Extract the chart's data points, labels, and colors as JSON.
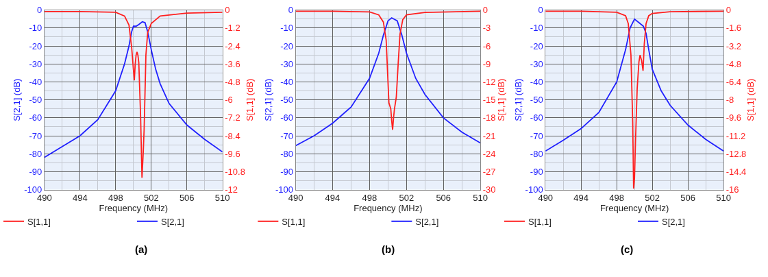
{
  "chart_data": [
    {
      "type": "line",
      "xlabel": "Frequency (MHz)",
      "ylabel": "S[2,1] (dB)",
      "y2label": "S[1,1] (dB)",
      "xlim": [
        490,
        510
      ],
      "xticks": [
        490,
        494,
        498,
        502,
        506,
        510
      ],
      "ylim": [
        -100,
        0
      ],
      "yticks": [
        0,
        -10,
        -20,
        -30,
        -40,
        -50,
        -60,
        -70,
        -80,
        -90,
        -100
      ],
      "y2lim": [
        -12,
        0
      ],
      "y2ticks": [
        0,
        -1.2,
        -2.4,
        -3.6,
        -4.8,
        -6,
        -7.2,
        -8.4,
        -9.6,
        -10.8,
        -12
      ],
      "grid": true,
      "legend": "bottom",
      "annotations": [
        "(a)"
      ],
      "series": [
        {
          "name": "S[1,1]",
          "color": "#ff2020",
          "axis": "y2",
          "x": [
            490,
            494,
            498,
            499,
            499.5,
            499.8,
            500,
            500.1,
            500.2,
            500.3,
            500.4,
            500.5,
            500.6,
            500.8,
            500.96,
            501.1,
            501.2,
            501.4,
            501.6,
            502,
            503,
            506,
            510
          ],
          "values": [
            -0.1,
            -0.1,
            -0.15,
            -0.4,
            -1.0,
            -2.5,
            -4.0,
            -4.7,
            -3.6,
            -3.0,
            -2.8,
            -3.0,
            -3.5,
            -7.0,
            -11.2,
            -9.5,
            -8.0,
            -3.0,
            -1.5,
            -0.9,
            -0.4,
            -0.2,
            -0.15
          ]
        },
        {
          "name": "S[2,1]",
          "color": "#2020ff",
          "x": [
            490,
            492,
            494,
            496,
            498,
            499,
            499.5,
            499.8,
            500,
            500.3,
            500.6,
            501,
            501.3,
            501.6,
            502,
            502.5,
            503,
            504,
            506,
            508,
            510
          ],
          "values": [
            -82,
            -76,
            -70,
            -61,
            -45,
            -30,
            -20,
            -12,
            -9,
            -9,
            -8,
            -6.5,
            -7,
            -12,
            -22,
            -33,
            -41,
            -52,
            -64,
            -72,
            -79
          ]
        }
      ]
    },
    {
      "type": "line",
      "xlabel": "Frequency (MHz)",
      "ylabel": "S[2,1] (dB)",
      "y2label": "S[1,1] (dB)",
      "xlim": [
        490,
        510
      ],
      "xticks": [
        490,
        494,
        498,
        502,
        506,
        510
      ],
      "ylim": [
        -100,
        0
      ],
      "yticks": [
        0,
        -10,
        -20,
        -30,
        -40,
        -50,
        -60,
        -70,
        -80,
        -90,
        -100
      ],
      "y2lim": [
        -30,
        0
      ],
      "y2ticks": [
        0,
        -3,
        -6,
        -9,
        -12,
        -15,
        -18,
        -21,
        -24,
        -27,
        -30
      ],
      "grid": true,
      "legend": "bottom",
      "annotations": [
        "(b)"
      ],
      "series": [
        {
          "name": "S[1,1]",
          "color": "#ff2020",
          "axis": "y2",
          "x": [
            490,
            494,
            498,
            499,
            499.5,
            499.8,
            500,
            500.1,
            500.3,
            500.4,
            500.5,
            500.6,
            500.7,
            500.9,
            501.1,
            501.3,
            501.6,
            502,
            504,
            510
          ],
          "values": [
            -0.2,
            -0.2,
            -0.3,
            -0.8,
            -2,
            -5,
            -12,
            -15.5,
            -16.5,
            -18.5,
            -20,
            -18,
            -16.5,
            -14.5,
            -9,
            -4,
            -1.6,
            -0.8,
            -0.4,
            -0.2
          ]
        },
        {
          "name": "S[2,1]",
          "color": "#2020ff",
          "x": [
            490,
            492,
            494,
            496,
            498,
            499,
            499.5,
            500,
            500.4,
            501,
            501.5,
            502,
            503,
            504,
            506,
            508,
            510
          ],
          "values": [
            -75.5,
            -70,
            -63,
            -54,
            -38,
            -24,
            -14,
            -6,
            -4.3,
            -6,
            -14,
            -24,
            -38,
            -47,
            -60,
            -68,
            -74
          ]
        }
      ]
    },
    {
      "type": "line",
      "xlabel": "Frequency (MHz)",
      "ylabel": "S[2,1] (dB)",
      "y2label": "S[1,1] (dB)",
      "xlim": [
        490,
        510
      ],
      "xticks": [
        490,
        494,
        498,
        502,
        506,
        510
      ],
      "ylim": [
        -100,
        0
      ],
      "yticks": [
        0,
        -10,
        -20,
        -30,
        -40,
        -50,
        -60,
        -70,
        -80,
        -90,
        -100
      ],
      "y2lim": [
        -16,
        0
      ],
      "y2ticks": [
        0,
        -1.6,
        -3.2,
        -4.8,
        -6.4,
        -8,
        -9.6,
        -11.2,
        -12.8,
        -14.4,
        -16
      ],
      "grid": true,
      "legend": "bottom",
      "annotations": [
        "(c)"
      ],
      "series": [
        {
          "name": "S[1,1]",
          "color": "#ff2020",
          "axis": "y2",
          "x": [
            490,
            494,
            498,
            499,
            499.3,
            499.6,
            499.8,
            499.9,
            500.0,
            500.1,
            500.3,
            500.5,
            500.63,
            500.8,
            500.96,
            501.1,
            501.3,
            501.6,
            502,
            504,
            510
          ],
          "values": [
            -0.1,
            -0.1,
            -0.2,
            -0.5,
            -1.2,
            -4,
            -10,
            -15.9,
            -15,
            -12,
            -7,
            -4.6,
            -4.0,
            -4.5,
            -5.4,
            -3,
            -1.2,
            -0.5,
            -0.3,
            -0.15,
            -0.1
          ]
        },
        {
          "name": "S[2,1]",
          "color": "#2020ff",
          "x": [
            490,
            492,
            494,
            496,
            498,
            499,
            499.5,
            500,
            500.5,
            501,
            501.3,
            501.6,
            502,
            503,
            504,
            506,
            508,
            510
          ],
          "values": [
            -78.5,
            -72.5,
            -66,
            -57,
            -40,
            -22,
            -10,
            -5,
            -7,
            -9,
            -13,
            -22,
            -33,
            -45,
            -53,
            -64,
            -72,
            -78.5
          ]
        }
      ]
    }
  ]
}
